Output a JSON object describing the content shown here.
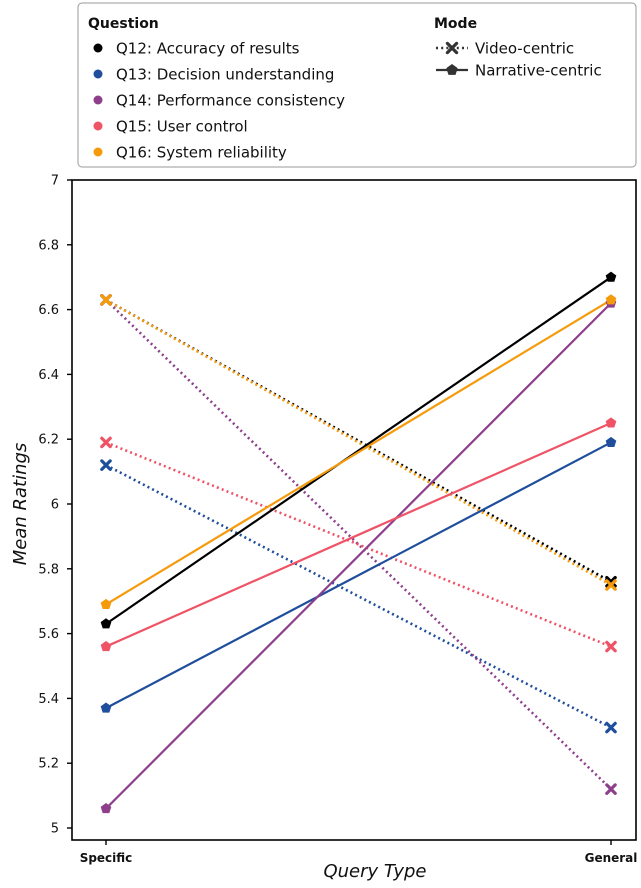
{
  "chart_data": {
    "type": "line",
    "categories": [
      "Specific",
      "General"
    ],
    "xlabel": "Query Type",
    "ylabel": "Mean Ratings",
    "ylim": [
      5,
      7
    ],
    "yticks": [
      "5",
      "5.2",
      "5.4",
      "5.6",
      "5.8",
      "6",
      "6.2",
      "6.4",
      "6.6",
      "6.8",
      "7"
    ],
    "grid": false,
    "legend": {
      "placement": "top",
      "question_heading": "Question",
      "mode_heading": "Mode",
      "questions": [
        {
          "key": "Q12",
          "label": "Q12: Accuracy of results",
          "color": "#000000"
        },
        {
          "key": "Q13",
          "label": "Q13: Decision understanding",
          "color": "#1f4e9c"
        },
        {
          "key": "Q14",
          "label": "Q14: Performance consistency",
          "color": "#8e3f8c"
        },
        {
          "key": "Q15",
          "label": "Q15: User control",
          "color": "#ef5366"
        },
        {
          "key": "Q16",
          "label": "Q16: System reliability",
          "color": "#f59b0b"
        }
      ],
      "modes": [
        {
          "key": "video",
          "label": "Video-centric",
          "line": "dotted",
          "marker": "x"
        },
        {
          "key": "narrative",
          "label": "Narrative-centric",
          "line": "solid",
          "marker": "pentagon"
        }
      ]
    },
    "series": [
      {
        "question": "Q12",
        "mode": "video",
        "values": [
          6.63,
          5.76
        ]
      },
      {
        "question": "Q13",
        "mode": "video",
        "values": [
          6.12,
          5.31
        ]
      },
      {
        "question": "Q14",
        "mode": "video",
        "values": [
          6.63,
          5.12
        ]
      },
      {
        "question": "Q15",
        "mode": "video",
        "values": [
          6.19,
          5.56
        ]
      },
      {
        "question": "Q16",
        "mode": "video",
        "values": [
          6.63,
          5.75
        ]
      },
      {
        "question": "Q12",
        "mode": "narrative",
        "values": [
          5.63,
          6.7
        ]
      },
      {
        "question": "Q13",
        "mode": "narrative",
        "values": [
          5.37,
          6.19
        ]
      },
      {
        "question": "Q14",
        "mode": "narrative",
        "values": [
          5.06,
          6.62
        ]
      },
      {
        "question": "Q15",
        "mode": "narrative",
        "values": [
          5.56,
          6.25
        ]
      },
      {
        "question": "Q16",
        "mode": "narrative",
        "values": [
          5.69,
          6.63
        ]
      }
    ]
  }
}
